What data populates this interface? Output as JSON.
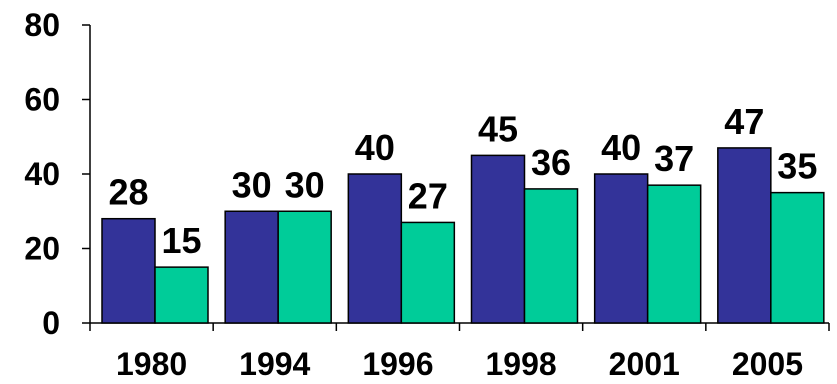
{
  "chart_data": {
    "type": "bar",
    "title": "",
    "xlabel": "",
    "ylabel": "",
    "categories": [
      "1980",
      "1994",
      "1996",
      "1998",
      "2001",
      "2005"
    ],
    "series": [
      {
        "color": "#333399",
        "values": [
          28,
          30,
          40,
          45,
          40,
          47
        ]
      },
      {
        "color": "#00cc99",
        "values": [
          15,
          30,
          27,
          36,
          37,
          35
        ]
      }
    ],
    "data_labels": [
      [
        "28",
        "30",
        "40",
        "45",
        "40",
        "47"
      ],
      [
        "15",
        "30",
        "27",
        "36",
        "37",
        "35"
      ]
    ],
    "ylim": [
      0,
      80
    ],
    "yticks": [
      0,
      20,
      40,
      60,
      80
    ],
    "grid": false,
    "legend": "none"
  }
}
